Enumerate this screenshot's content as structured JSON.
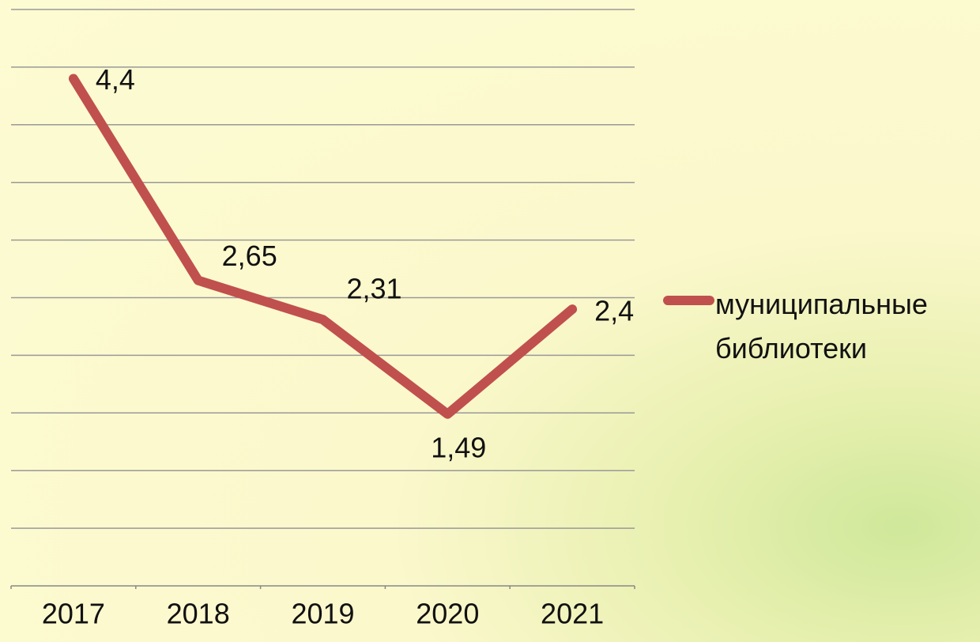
{
  "chart_data": {
    "type": "line",
    "categories": [
      "2017",
      "2018",
      "2019",
      "2020",
      "2021"
    ],
    "series": [
      {
        "name": "муниципальные библиотеки",
        "color": "#c0504d",
        "values": [
          4.4,
          2.65,
          2.31,
          1.49,
          2.4
        ],
        "value_labels": [
          "4,4",
          "2,65",
          "2,31",
          "1,49",
          "2,4"
        ]
      }
    ],
    "ylim": [
      0,
      5
    ],
    "yticks": [
      0,
      0.5,
      1,
      1.5,
      2,
      2.5,
      3,
      3.5,
      4,
      4.5,
      5
    ],
    "grid": true,
    "legend": "right"
  }
}
